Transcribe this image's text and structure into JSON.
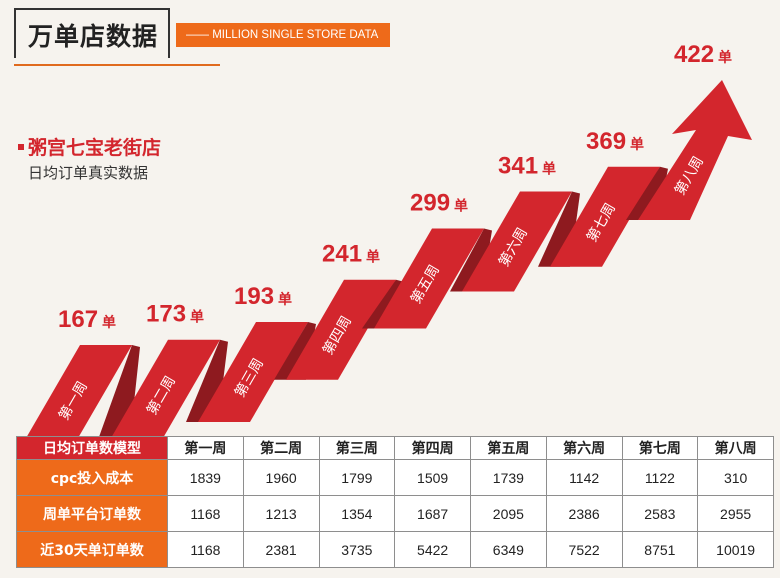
{
  "header": {
    "title": "万单店数据",
    "subtitle": "—— MILLION SINGLE STORE DATA"
  },
  "store": {
    "name": "粥宫七宝老街店",
    "caption": "日均订单真实数据"
  },
  "chart_data": {
    "type": "bar",
    "unit": "单",
    "categories": [
      "第一周",
      "第二周",
      "第三周",
      "第四周",
      "第五周",
      "第六周",
      "第七周",
      "第八周"
    ],
    "values": [
      167,
      173,
      193,
      241,
      299,
      341,
      369,
      422
    ]
  },
  "table": {
    "corner": "日均订单数模型",
    "columns": [
      "第一周",
      "第二周",
      "第三周",
      "第四周",
      "第五周",
      "第六周",
      "第七周",
      "第八周"
    ],
    "rows": [
      {
        "label": "cpc投入成本",
        "values": [
          "1839",
          "1960",
          "1799",
          "1509",
          "1739",
          "1142",
          "1122",
          "310"
        ]
      },
      {
        "label": "周单平台订单数",
        "values": [
          "1168",
          "1213",
          "1354",
          "1687",
          "2095",
          "2386",
          "2583",
          "2955"
        ]
      },
      {
        "label": "近30天单订单数",
        "values": [
          "1168",
          "2381",
          "3735",
          "5422",
          "6349",
          "7522",
          "8751",
          "10019"
        ]
      }
    ]
  },
  "colors": {
    "red": "#d3262d",
    "dark_red": "#8e1a1f",
    "orange": "#ee6a1a"
  }
}
